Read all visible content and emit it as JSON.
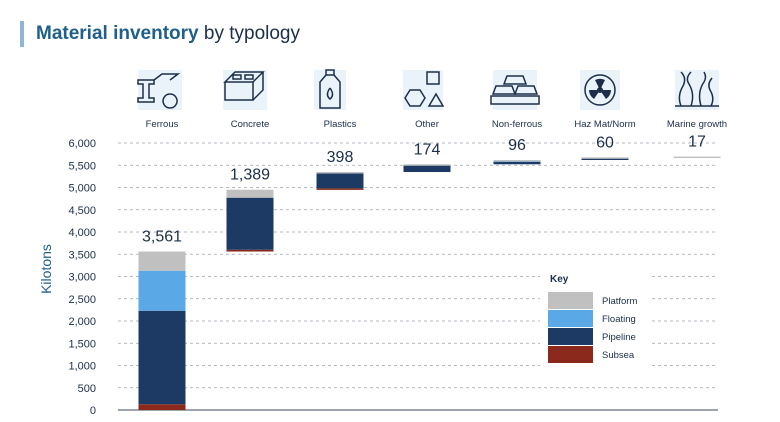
{
  "title": {
    "bold": "Material inventory",
    "rest": " by typology"
  },
  "colors": {
    "accent": "#1f5f8b",
    "Platform": "#c0c0c0",
    "Floating": "#5aa9e6",
    "Pipeline": "#1c3a63",
    "Subsea": "#8b2a1c"
  },
  "icons": [
    "steel-beam-icon",
    "concrete-block-icon",
    "plastic-bottle-icon",
    "shapes-icon",
    "metal-ingots-icon",
    "radiation-icon",
    "seaweed-icon"
  ],
  "chart_data": {
    "type": "bar",
    "subtype": "stacked waterfall",
    "ylabel": "Kilotons",
    "ylim": [
      0,
      6000
    ],
    "yticks": [
      "0",
      "500",
      "1,000",
      "1,500",
      "2,000",
      "2,500",
      "3,000",
      "3,500",
      "4,000",
      "4,500",
      "5,000",
      "5,500",
      "6,000"
    ],
    "grid": "horizontal dashed",
    "legend": {
      "title": "Key",
      "placement": "right",
      "entries": [
        "Platform",
        "Floating",
        "Pipeline",
        "Subsea"
      ]
    },
    "categories": [
      "Ferrous",
      "Concrete",
      "Plastics",
      "Other",
      "Non-ferrous",
      "Haz Mat/Norm",
      "Marine growth"
    ],
    "totals": [
      "3,561",
      "1,389",
      "398",
      "174",
      "96",
      "60",
      "17"
    ],
    "series": [
      {
        "name": "Subsea",
        "values": [
          130,
          40,
          30,
          0,
          0,
          0,
          0
        ]
      },
      {
        "name": "Pipeline",
        "values": [
          2100,
          1170,
          338,
          154,
          56,
          52,
          0
        ]
      },
      {
        "name": "Floating",
        "values": [
          900,
          0,
          0,
          0,
          30,
          0,
          0
        ]
      },
      {
        "name": "Platform",
        "values": [
          431,
          179,
          30,
          20,
          10,
          8,
          17
        ]
      }
    ]
  }
}
